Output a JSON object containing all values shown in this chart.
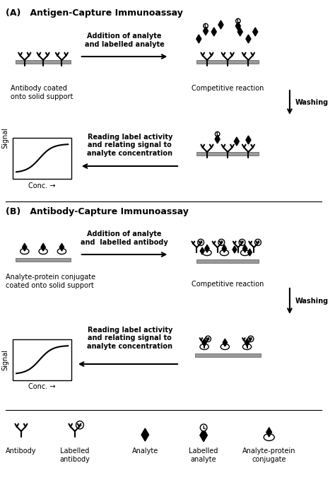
{
  "title_A": "(A)   Antigen-Capture Immunoassay",
  "title_B": "(B)   Antibody-Capture Immunoassay",
  "label_antibody_coated": "Antibody coated\nonto solid support",
  "label_analyte_protein": "Analyte-protein conjugate\ncoated onto solid support",
  "label_addition_A": "Addition of analyte\nand labelled analyte",
  "label_addition_B": "Addition of analyte\nand  labelled antibody",
  "label_competitive": "Competitive reaction",
  "label_washing": "Washing",
  "label_reading": "Reading label activity\nand relating signal to\nanalyte concentration",
  "label_signal": "Signal",
  "label_conc": "Conc. →",
  "legend_antibody": "Antibody",
  "legend_labelled_ab": "Labelled\nantibody",
  "legend_analyte": "Analyte",
  "legend_labelled_an": "Labelled\nanalyte",
  "legend_analyte_protein": "Analyte-protein\nconjugate",
  "bg_color": "#ffffff",
  "text_color": "#000000",
  "gray_color": "#aaaaaa",
  "dark_gray": "#666666"
}
